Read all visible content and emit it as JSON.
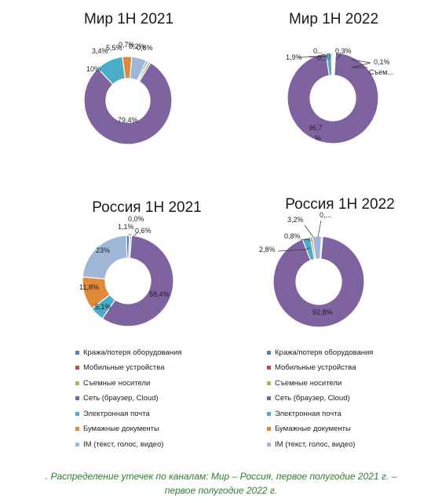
{
  "palette": {
    "equipment": "#4f81bd",
    "mobile": "#c0504d",
    "removable": "#9bbb59",
    "network": "#7f63a0",
    "email": "#4aacc6",
    "paper": "#e08a37",
    "im": "#9fb6d9"
  },
  "chart_data": [
    {
      "type": "pie",
      "title": "Мир 1Н 2021",
      "slices": [
        {
          "key": "network",
          "value": 79.4,
          "label": "79,4%"
        },
        {
          "key": "email",
          "value": 10,
          "label": "10%"
        },
        {
          "key": "paper",
          "value": 3.4,
          "label": "3,4%"
        },
        {
          "key": "im",
          "value": 5.5,
          "label": "5,5%"
        },
        {
          "key": "equipment",
          "value": 0.7,
          "label": "0,7%"
        },
        {
          "key": "mobile",
          "value": 0.2,
          "label": "0,2%"
        },
        {
          "key": "removable",
          "value": 0.8,
          "label": "0,8%"
        }
      ]
    },
    {
      "type": "pie",
      "title": "Мир 1Н 2022",
      "slices": [
        {
          "key": "network",
          "value": 96.7,
          "label": "96,7 %"
        },
        {
          "key": "email",
          "value": 1.9,
          "label": "1,9%"
        },
        {
          "key": "paper",
          "value": 0.5,
          "label": "0..."
        },
        {
          "key": "im",
          "value": 0.4,
          "label": "0..."
        },
        {
          "key": "equipment",
          "value": 0.3,
          "label": "0,3%"
        },
        {
          "key": "mobile",
          "value": 0.1,
          "label": "0,1%"
        },
        {
          "key": "removable",
          "value": 0.1,
          "label": "Съем..."
        }
      ]
    },
    {
      "type": "pie",
      "title": "Россия 1Н 2021",
      "slices": [
        {
          "key": "network",
          "value": 58.4,
          "label": "58,4%"
        },
        {
          "key": "email",
          "value": 5.1,
          "label": "5,1%"
        },
        {
          "key": "paper",
          "value": 11.8,
          "label": "11,8%"
        },
        {
          "key": "im",
          "value": 23,
          "label": "23%"
        },
        {
          "key": "equipment",
          "value": 1.1,
          "label": "1,1%"
        },
        {
          "key": "mobile",
          "value": 0.0,
          "label": "0,0%"
        },
        {
          "key": "removable",
          "value": 0.6,
          "label": "0,6%"
        }
      ]
    },
    {
      "type": "pie",
      "title": "Россия 1Н 2022",
      "slices": [
        {
          "key": "network",
          "value": 92.8,
          "label": "92,8%"
        },
        {
          "key": "email",
          "value": 2.8,
          "label": "2,8%"
        },
        {
          "key": "paper",
          "value": 0.8,
          "label": "0,8%"
        },
        {
          "key": "im",
          "value": 3.2,
          "label": "3,2%"
        },
        {
          "key": "equipment",
          "value": 0.4,
          "label": "0,..."
        }
      ]
    }
  ],
  "legend": [
    {
      "key": "equipment",
      "label": "Кража/потеря оборудования"
    },
    {
      "key": "mobile",
      "label": "Мобильные устройства"
    },
    {
      "key": "removable",
      "label": "Съемные носители"
    },
    {
      "key": "network",
      "label": "Сеть (браузер, Cloud)"
    },
    {
      "key": "email",
      "label": "Электронная почта"
    },
    {
      "key": "paper",
      "label": "Бумажные документы"
    },
    {
      "key": "im",
      "label": "IM (текст, голос, видео)"
    }
  ],
  "caption": {
    "line1": ". Распределение утечек по каналам: Мир – Россия, первое полугодие 2021 г. –",
    "line2": "первое полугодие 2022 г."
  }
}
